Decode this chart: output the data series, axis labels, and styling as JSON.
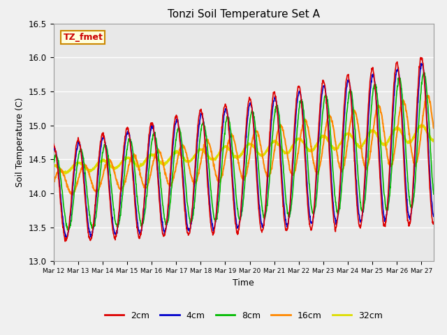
{
  "title": "Tonzi Soil Temperature Set A",
  "xlabel": "Time",
  "ylabel": "Soil Temperature (C)",
  "ylim": [
    13.0,
    16.5
  ],
  "annotation_text": "TZ_fmet",
  "annotation_color": "#cc0000",
  "annotation_bg": "#ffffdd",
  "annotation_border": "#cc8800",
  "background_color": "#e8e8e8",
  "plot_bg": "#e8e8e8",
  "series": {
    "2cm": {
      "color": "#dd0000",
      "linewidth": 1.2
    },
    "4cm": {
      "color": "#0000cc",
      "linewidth": 1.2
    },
    "8cm": {
      "color": "#00bb00",
      "linewidth": 1.2
    },
    "16cm": {
      "color": "#ff8800",
      "linewidth": 1.5
    },
    "32cm": {
      "color": "#dddd00",
      "linewidth": 2.0
    }
  },
  "x_tick_labels": [
    "Mar 12",
    "Mar 13",
    "Mar 14",
    "Mar 15",
    "Mar 16",
    "Mar 17",
    "Mar 18",
    "Mar 19",
    "Mar 20",
    "Mar 21",
    "Mar 22",
    "Mar 23",
    "Mar 24",
    "Mar 25",
    "Mar 26",
    "Mar 27"
  ],
  "num_days": 15.5,
  "samples_per_day": 96
}
